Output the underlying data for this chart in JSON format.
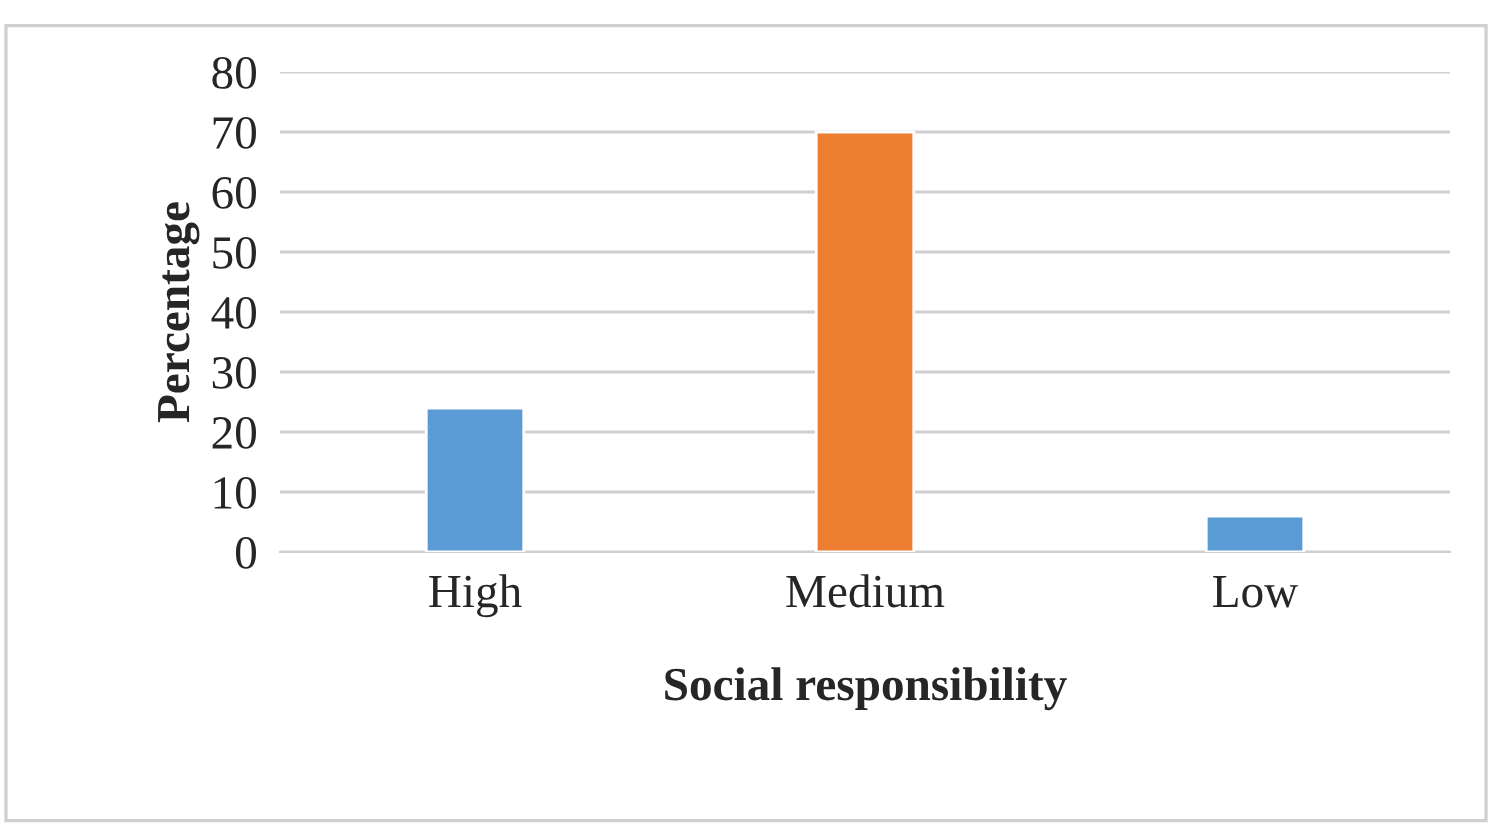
{
  "chart_data": {
    "type": "bar",
    "xlabel": "Social responsibility",
    "ylabel": "Percentage",
    "categories": [
      "High",
      "Medium",
      "Low"
    ],
    "values": [
      24,
      70,
      6
    ],
    "colors": [
      "#5b9bd5",
      "#ed7d31",
      "#5b9bd5"
    ],
    "ylim": [
      0,
      80
    ],
    "yticks": [
      0,
      10,
      20,
      30,
      40,
      50,
      60,
      70,
      80
    ],
    "grid": "y"
  }
}
